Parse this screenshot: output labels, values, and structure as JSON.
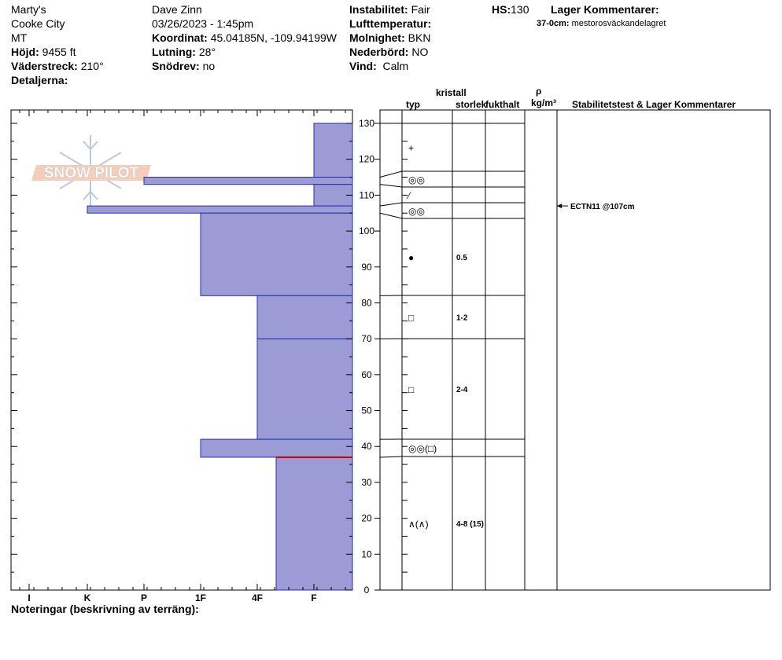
{
  "header": {
    "location": "Marty's",
    "area": "Cooke City",
    "state": "MT",
    "elevation_label": "Höjd:",
    "elevation_value": "9455 ft",
    "aspect_label": "Väderstreck:",
    "aspect_value": "210°",
    "details_label": "Detaljerna:",
    "observer": "Dave Zinn",
    "datetime": "03/26/2023 - 1:45pm",
    "coord_label": "Koordinat:",
    "coord_value": "45.04185N, -109.94199W",
    "slope_label": "Lutning:",
    "slope_value": "28°",
    "drift_label": "Snödrev:",
    "drift_value": "no",
    "instability_label": "Instabilitet:",
    "instability_value": "Fair",
    "airtemp_label": "Lufttemperatur:",
    "airtemp_value": "",
    "cloud_label": "Molnighet:",
    "cloud_value": "BKN",
    "precip_label": "Nederbörd:",
    "precip_value": "NO",
    "wind_label": "Vind:",
    "wind_value": "Calm",
    "hs_label": "HS:",
    "hs_value": "130",
    "layer_comments_label": "Lager Kommentarer:",
    "layer_comment_range": "37-0cm:",
    "layer_comment_text": "mestorosväckandelagret"
  },
  "columns": {
    "crystal": "kristall",
    "type": "typ",
    "size": "storlek",
    "moisture": "fukthalt",
    "rho": "ρ",
    "density_unit": "kg/m³",
    "stability": "Stabilitetstest & Lager Kommentarer"
  },
  "footer": {
    "notes_label": "Noteringar (beskrivning av terräng):"
  },
  "logo_text": "SNOW PILOT",
  "colors": {
    "layer_fill": "#9b9bd6",
    "layer_edge": "#2a2ab4",
    "weak_layer": "#cc0000"
  },
  "chart_data": {
    "type": "bar",
    "orientation": "horizontal-profile",
    "y_axis": {
      "range": [
        0,
        130
      ],
      "ticks": [
        0,
        10,
        20,
        30,
        40,
        50,
        60,
        70,
        80,
        90,
        100,
        110,
        120,
        130
      ]
    },
    "x_axis": {
      "categories": [
        "I",
        "K",
        "P",
        "1F",
        "4F",
        "F"
      ],
      "direction": "right-to-left"
    },
    "layers": [
      {
        "top": 130,
        "bottom": 115,
        "hardness": "F"
      },
      {
        "top": 115,
        "bottom": 113,
        "hardness": "P"
      },
      {
        "top": 113,
        "bottom": 107,
        "hardness": "F"
      },
      {
        "top": 107,
        "bottom": 105,
        "hardness": "K"
      },
      {
        "top": 105,
        "bottom": 82,
        "hardness": "1F"
      },
      {
        "top": 82,
        "bottom": 70,
        "hardness": "4F"
      },
      {
        "top": 70,
        "bottom": 42,
        "hardness": "4F"
      },
      {
        "top": 42,
        "bottom": 37,
        "hardness": "1F"
      },
      {
        "top": 37,
        "bottom": 0,
        "hardness": "F+"
      }
    ],
    "weak_layer_cm": 37,
    "grain_rows": [
      {
        "top": 130,
        "bottom": 116,
        "symbol": "+",
        "size": ""
      },
      {
        "top": 116,
        "bottom": 112,
        "symbol": "◎◎",
        "size": ""
      },
      {
        "top": 112,
        "bottom": 108,
        "symbol": "⁄",
        "size": ""
      },
      {
        "top": 108,
        "bottom": 104,
        "symbol": "◎◎",
        "size": ""
      },
      {
        "top": 104,
        "bottom": 82,
        "symbol": "●",
        "size": "0.5"
      },
      {
        "top": 82,
        "bottom": 70,
        "symbol": "□",
        "size": "1-2"
      },
      {
        "top": 70,
        "bottom": 42,
        "symbol": "□",
        "size": "2-4"
      },
      {
        "top": 42,
        "bottom": 37,
        "symbol": "◎◎(□)",
        "size": ""
      },
      {
        "top": 37,
        "bottom": 0,
        "symbol": "∧(∧)",
        "size": "4-8 (15)"
      }
    ],
    "stability_tests": [
      {
        "depth_cm": 107,
        "label": "ECTN11 @107cm"
      }
    ]
  }
}
